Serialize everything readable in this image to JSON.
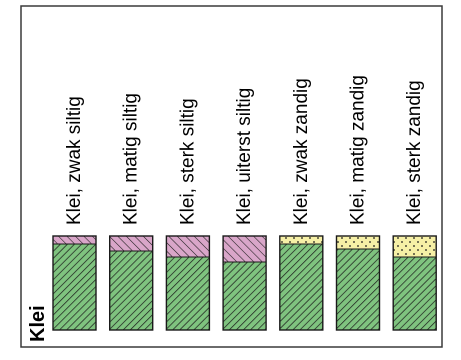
{
  "title": "Klei",
  "colors": {
    "clay": "#7fc37f",
    "silt": "#d9a6c9",
    "sand": "#f6f0a6",
    "frame": "#3a3a3a",
    "hatch": "#1a1a1a"
  },
  "columns": [
    {
      "label": "Klei, zwak siltig",
      "top_type": "silt",
      "top_fraction": 0.08
    },
    {
      "label": "Klei, matig siltig",
      "top_type": "silt",
      "top_fraction": 0.16
    },
    {
      "label": "Klei, sterk siltig",
      "top_type": "silt",
      "top_fraction": 0.22
    },
    {
      "label": "Klei, uiterst siltig",
      "top_type": "silt",
      "top_fraction": 0.28
    },
    {
      "label": "Klei, zwak zandig",
      "top_type": "sand",
      "top_fraction": 0.08
    },
    {
      "label": "Klei, matig zandig",
      "top_type": "sand",
      "top_fraction": 0.14
    },
    {
      "label": "Klei, sterk zandig",
      "top_type": "sand",
      "top_fraction": 0.22
    }
  ]
}
